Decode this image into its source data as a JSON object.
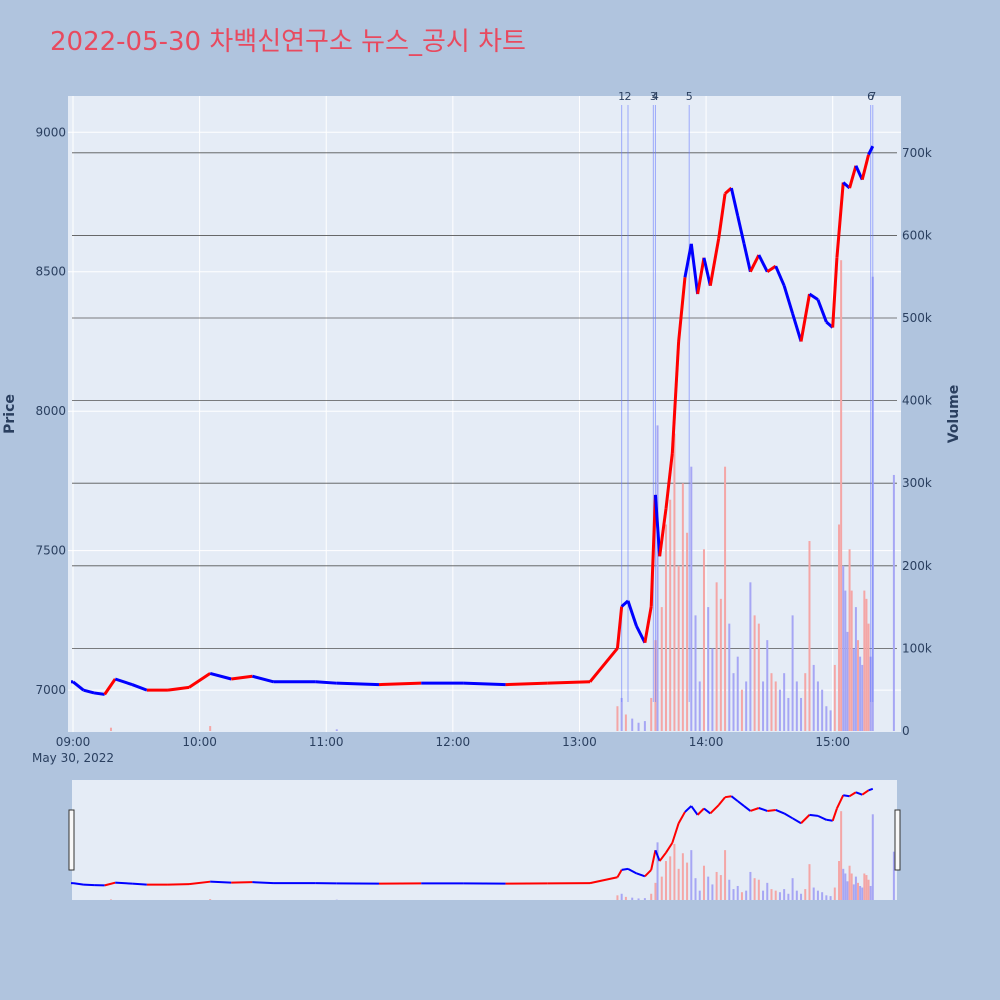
{
  "title": "2022-05-30 차백신연구소 뉴스_공시 차트",
  "colors": {
    "background": "#b0c4de",
    "plot_bg": "#e5ecf6",
    "title": "#e84a5f",
    "up": "#ff0000",
    "down": "#0000ff",
    "up_volume": "#f4a6a6",
    "down_volume": "#a6a6f4",
    "news_line": "#6b7cff",
    "volume_grid": "#555555"
  },
  "chart_data": {
    "type": "candlestick",
    "xlabel": "",
    "ylabel": "Price",
    "y2label": "Volume",
    "x_ticks": [
      "09:00",
      "10:00",
      "11:00",
      "12:00",
      "13:00",
      "14:00",
      "15:00"
    ],
    "date_label": "May 30, 2022",
    "price_ticks": [
      7000,
      7500,
      8000,
      8500,
      9000
    ],
    "volume_ticks": [
      "0",
      "100k",
      "200k",
      "300k",
      "400k",
      "500k",
      "600k",
      "700k"
    ],
    "x_range": [
      "09:00",
      "15:30"
    ],
    "y_range": [
      6850,
      9130
    ],
    "volume_range": [
      0,
      770000
    ],
    "rangeslider": true,
    "news_markers": [
      {
        "label": "1",
        "time": "13:20"
      },
      {
        "label": "2",
        "time": "13:23"
      },
      {
        "label": "3",
        "time": "13:35"
      },
      {
        "label": "4",
        "time": "13:36"
      },
      {
        "label": "5",
        "time": "13:52"
      },
      {
        "label": "6",
        "time": "15:18"
      },
      {
        "label": "7",
        "time": "15:19"
      }
    ],
    "price_segments": [
      {
        "t": "09:00",
        "p": 7030,
        "dir": "down"
      },
      {
        "t": "09:05",
        "p": 7000,
        "dir": "down"
      },
      {
        "t": "09:10",
        "p": 6990,
        "dir": "down"
      },
      {
        "t": "09:15",
        "p": 6985,
        "dir": "down"
      },
      {
        "t": "09:20",
        "p": 7040,
        "dir": "up"
      },
      {
        "t": "09:28",
        "p": 7020,
        "dir": "down"
      },
      {
        "t": "09:35",
        "p": 7000,
        "dir": "down"
      },
      {
        "t": "09:45",
        "p": 7000,
        "dir": "up"
      },
      {
        "t": "09:55",
        "p": 7010,
        "dir": "up"
      },
      {
        "t": "10:05",
        "p": 7060,
        "dir": "up"
      },
      {
        "t": "10:15",
        "p": 7040,
        "dir": "down"
      },
      {
        "t": "10:25",
        "p": 7050,
        "dir": "up"
      },
      {
        "t": "10:35",
        "p": 7030,
        "dir": "down"
      },
      {
        "t": "10:55",
        "p": 7030,
        "dir": "down"
      },
      {
        "t": "11:05",
        "p": 7025,
        "dir": "down"
      },
      {
        "t": "11:25",
        "p": 7020,
        "dir": "down"
      },
      {
        "t": "11:45",
        "p": 7025,
        "dir": "up"
      },
      {
        "t": "12:05",
        "p": 7025,
        "dir": "down"
      },
      {
        "t": "12:25",
        "p": 7020,
        "dir": "down"
      },
      {
        "t": "12:45",
        "p": 7025,
        "dir": "up"
      },
      {
        "t": "13:05",
        "p": 7030,
        "dir": "up"
      },
      {
        "t": "13:18",
        "p": 7150,
        "dir": "up"
      },
      {
        "t": "13:20",
        "p": 7300,
        "dir": "up"
      },
      {
        "t": "13:23",
        "p": 7320,
        "dir": "down"
      },
      {
        "t": "13:27",
        "p": 7230,
        "dir": "down"
      },
      {
        "t": "13:31",
        "p": 7170,
        "dir": "down"
      },
      {
        "t": "13:34",
        "p": 7300,
        "dir": "up"
      },
      {
        "t": "13:36",
        "p": 7700,
        "dir": "up"
      },
      {
        "t": "13:38",
        "p": 7480,
        "dir": "down"
      },
      {
        "t": "13:41",
        "p": 7650,
        "dir": "up"
      },
      {
        "t": "13:44",
        "p": 7850,
        "dir": "up"
      },
      {
        "t": "13:47",
        "p": 8250,
        "dir": "up"
      },
      {
        "t": "13:50",
        "p": 8480,
        "dir": "up"
      },
      {
        "t": "13:53",
        "p": 8600,
        "dir": "down"
      },
      {
        "t": "13:56",
        "p": 8420,
        "dir": "down"
      },
      {
        "t": "13:59",
        "p": 8550,
        "dir": "up"
      },
      {
        "t": "14:02",
        "p": 8450,
        "dir": "down"
      },
      {
        "t": "14:06",
        "p": 8620,
        "dir": "up"
      },
      {
        "t": "14:09",
        "p": 8780,
        "dir": "up"
      },
      {
        "t": "14:12",
        "p": 8800,
        "dir": "up"
      },
      {
        "t": "14:15",
        "p": 8700,
        "dir": "down"
      },
      {
        "t": "14:18",
        "p": 8600,
        "dir": "down"
      },
      {
        "t": "14:21",
        "p": 8500,
        "dir": "down"
      },
      {
        "t": "14:25",
        "p": 8560,
        "dir": "up"
      },
      {
        "t": "14:29",
        "p": 8500,
        "dir": "down"
      },
      {
        "t": "14:33",
        "p": 8520,
        "dir": "up"
      },
      {
        "t": "14:37",
        "p": 8450,
        "dir": "down"
      },
      {
        "t": "14:41",
        "p": 8350,
        "dir": "down"
      },
      {
        "t": "14:45",
        "p": 8250,
        "dir": "down"
      },
      {
        "t": "14:49",
        "p": 8420,
        "dir": "up"
      },
      {
        "t": "14:53",
        "p": 8400,
        "dir": "down"
      },
      {
        "t": "14:57",
        "p": 8320,
        "dir": "down"
      },
      {
        "t": "15:00",
        "p": 8300,
        "dir": "down"
      },
      {
        "t": "15:02",
        "p": 8550,
        "dir": "up"
      },
      {
        "t": "15:05",
        "p": 8820,
        "dir": "up"
      },
      {
        "t": "15:08",
        "p": 8800,
        "dir": "down"
      },
      {
        "t": "15:11",
        "p": 8880,
        "dir": "up"
      },
      {
        "t": "15:14",
        "p": 8830,
        "dir": "down"
      },
      {
        "t": "15:17",
        "p": 8920,
        "dir": "up"
      },
      {
        "t": "15:19",
        "p": 8950,
        "dir": "down"
      }
    ],
    "volumes": [
      {
        "t": "09:18",
        "v": 4000,
        "dir": "up"
      },
      {
        "t": "10:05",
        "v": 6000,
        "dir": "up"
      },
      {
        "t": "11:05",
        "v": 2000,
        "dir": "down"
      },
      {
        "t": "13:18",
        "v": 30000,
        "dir": "up"
      },
      {
        "t": "13:20",
        "v": 40000,
        "dir": "down"
      },
      {
        "t": "13:22",
        "v": 20000,
        "dir": "up"
      },
      {
        "t": "13:25",
        "v": 15000,
        "dir": "down"
      },
      {
        "t": "13:28",
        "v": 10000,
        "dir": "down"
      },
      {
        "t": "13:31",
        "v": 12000,
        "dir": "down"
      },
      {
        "t": "13:34",
        "v": 40000,
        "dir": "up"
      },
      {
        "t": "13:36",
        "v": 110000,
        "dir": "up"
      },
      {
        "t": "13:37",
        "v": 370000,
        "dir": "down"
      },
      {
        "t": "13:39",
        "v": 150000,
        "dir": "up"
      },
      {
        "t": "13:41",
        "v": 250000,
        "dir": "up"
      },
      {
        "t": "13:43",
        "v": 280000,
        "dir": "up"
      },
      {
        "t": "13:45",
        "v": 360000,
        "dir": "up"
      },
      {
        "t": "13:47",
        "v": 200000,
        "dir": "up"
      },
      {
        "t": "13:49",
        "v": 300000,
        "dir": "up"
      },
      {
        "t": "13:51",
        "v": 240000,
        "dir": "up"
      },
      {
        "t": "13:53",
        "v": 320000,
        "dir": "down"
      },
      {
        "t": "13:55",
        "v": 140000,
        "dir": "down"
      },
      {
        "t": "13:57",
        "v": 60000,
        "dir": "down"
      },
      {
        "t": "13:59",
        "v": 220000,
        "dir": "up"
      },
      {
        "t": "14:01",
        "v": 150000,
        "dir": "down"
      },
      {
        "t": "14:03",
        "v": 100000,
        "dir": "down"
      },
      {
        "t": "14:05",
        "v": 180000,
        "dir": "up"
      },
      {
        "t": "14:07",
        "v": 160000,
        "dir": "up"
      },
      {
        "t": "14:09",
        "v": 320000,
        "dir": "up"
      },
      {
        "t": "14:11",
        "v": 130000,
        "dir": "down"
      },
      {
        "t": "14:13",
        "v": 70000,
        "dir": "down"
      },
      {
        "t": "14:15",
        "v": 90000,
        "dir": "down"
      },
      {
        "t": "14:17",
        "v": 50000,
        "dir": "up"
      },
      {
        "t": "14:19",
        "v": 60000,
        "dir": "down"
      },
      {
        "t": "14:21",
        "v": 180000,
        "dir": "down"
      },
      {
        "t": "14:23",
        "v": 140000,
        "dir": "up"
      },
      {
        "t": "14:25",
        "v": 130000,
        "dir": "up"
      },
      {
        "t": "14:27",
        "v": 60000,
        "dir": "down"
      },
      {
        "t": "14:29",
        "v": 110000,
        "dir": "down"
      },
      {
        "t": "14:31",
        "v": 70000,
        "dir": "up"
      },
      {
        "t": "14:33",
        "v": 60000,
        "dir": "up"
      },
      {
        "t": "14:35",
        "v": 50000,
        "dir": "down"
      },
      {
        "t": "14:37",
        "v": 70000,
        "dir": "down"
      },
      {
        "t": "14:39",
        "v": 40000,
        "dir": "down"
      },
      {
        "t": "14:41",
        "v": 140000,
        "dir": "down"
      },
      {
        "t": "14:43",
        "v": 60000,
        "dir": "down"
      },
      {
        "t": "14:45",
        "v": 40000,
        "dir": "down"
      },
      {
        "t": "14:47",
        "v": 70000,
        "dir": "up"
      },
      {
        "t": "14:49",
        "v": 230000,
        "dir": "up"
      },
      {
        "t": "14:51",
        "v": 80000,
        "dir": "down"
      },
      {
        "t": "14:53",
        "v": 60000,
        "dir": "down"
      },
      {
        "t": "14:55",
        "v": 50000,
        "dir": "down"
      },
      {
        "t": "14:57",
        "v": 30000,
        "dir": "down"
      },
      {
        "t": "14:59",
        "v": 25000,
        "dir": "down"
      },
      {
        "t": "15:01",
        "v": 80000,
        "dir": "up"
      },
      {
        "t": "15:03",
        "v": 250000,
        "dir": "up"
      },
      {
        "t": "15:04",
        "v": 570000,
        "dir": "up"
      },
      {
        "t": "15:05",
        "v": 200000,
        "dir": "down"
      },
      {
        "t": "15:06",
        "v": 170000,
        "dir": "down"
      },
      {
        "t": "15:07",
        "v": 120000,
        "dir": "down"
      },
      {
        "t": "15:08",
        "v": 220000,
        "dir": "up"
      },
      {
        "t": "15:09",
        "v": 170000,
        "dir": "up"
      },
      {
        "t": "15:10",
        "v": 100000,
        "dir": "down"
      },
      {
        "t": "15:11",
        "v": 150000,
        "dir": "down"
      },
      {
        "t": "15:12",
        "v": 110000,
        "dir": "up"
      },
      {
        "t": "15:13",
        "v": 90000,
        "dir": "down"
      },
      {
        "t": "15:14",
        "v": 80000,
        "dir": "down"
      },
      {
        "t": "15:15",
        "v": 170000,
        "dir": "up"
      },
      {
        "t": "15:16",
        "v": 160000,
        "dir": "up"
      },
      {
        "t": "15:17",
        "v": 130000,
        "dir": "up"
      },
      {
        "t": "15:18",
        "v": 90000,
        "dir": "down"
      },
      {
        "t": "15:19",
        "v": 550000,
        "dir": "down"
      },
      {
        "t": "15:29",
        "v": 310000,
        "dir": "down"
      }
    ]
  }
}
